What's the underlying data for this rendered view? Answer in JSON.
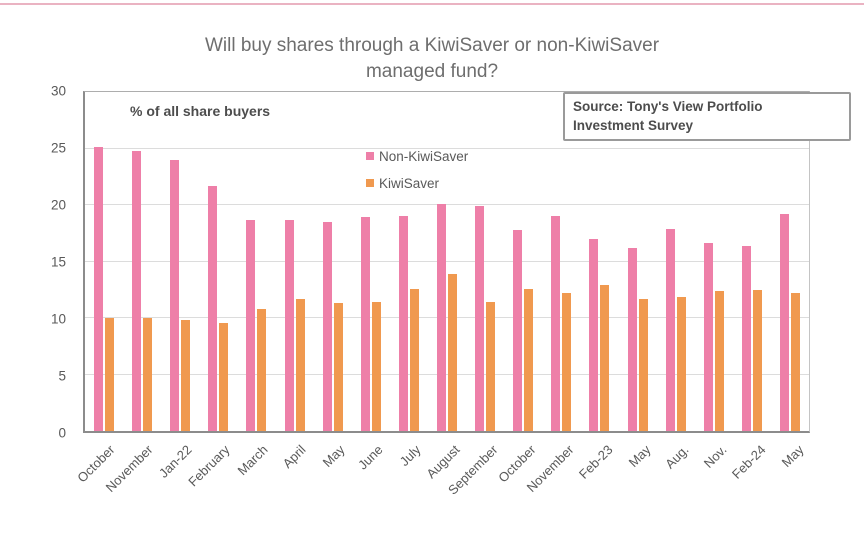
{
  "title": {
    "line1": "Will buy shares through a KiwiSaver or non-KiwiSaver",
    "line2": "managed fund?"
  },
  "annotations": {
    "axis_note": "% of all share buyers",
    "source_line1": "Source: Tony's View Portfolio",
    "source_line2": "Investment Survey"
  },
  "legend": [
    {
      "label": "Non-KiwiSaver",
      "color": "#ee7fa8"
    },
    {
      "label": "KiwiSaver",
      "color": "#f0994f"
    }
  ],
  "chart_data": {
    "type": "bar",
    "title": "Will buy shares through a KiwiSaver or non-KiwiSaver managed fund?",
    "subtitle": "% of all share buyers",
    "source": "Source: Tony's View Portfolio Investment Survey",
    "categories": [
      "October",
      "November",
      "Jan-22",
      "February",
      "March",
      "April",
      "May",
      "June",
      "July",
      "August",
      "September",
      "October",
      "November",
      "Feb-23",
      "May",
      "Aug.",
      "Nov.",
      "Feb-24",
      "May"
    ],
    "series": [
      {
        "name": "Non-KiwiSaver",
        "color": "#ee7fa8",
        "values": [
          25.1,
          24.8,
          24.0,
          21.7,
          18.7,
          18.7,
          18.5,
          18.9,
          19.0,
          20.1,
          19.9,
          17.8,
          19.0,
          17.0,
          16.2,
          17.9,
          16.6,
          16.4,
          19.2
        ]
      },
      {
        "name": "KiwiSaver",
        "color": "#f0994f",
        "values": [
          10.0,
          10.0,
          9.8,
          9.6,
          10.8,
          11.7,
          11.3,
          11.4,
          12.6,
          13.9,
          11.4,
          12.6,
          12.2,
          12.9,
          11.7,
          11.9,
          12.4,
          12.5,
          12.2
        ]
      }
    ],
    "xlabel": "",
    "ylabel": "",
    "ylim": [
      0,
      30
    ],
    "yticks": [
      0,
      5,
      10,
      15,
      20,
      25,
      30
    ],
    "grid": true,
    "legend_position": "top-center-inside",
    "accent_line_color": "#eab3c2"
  }
}
